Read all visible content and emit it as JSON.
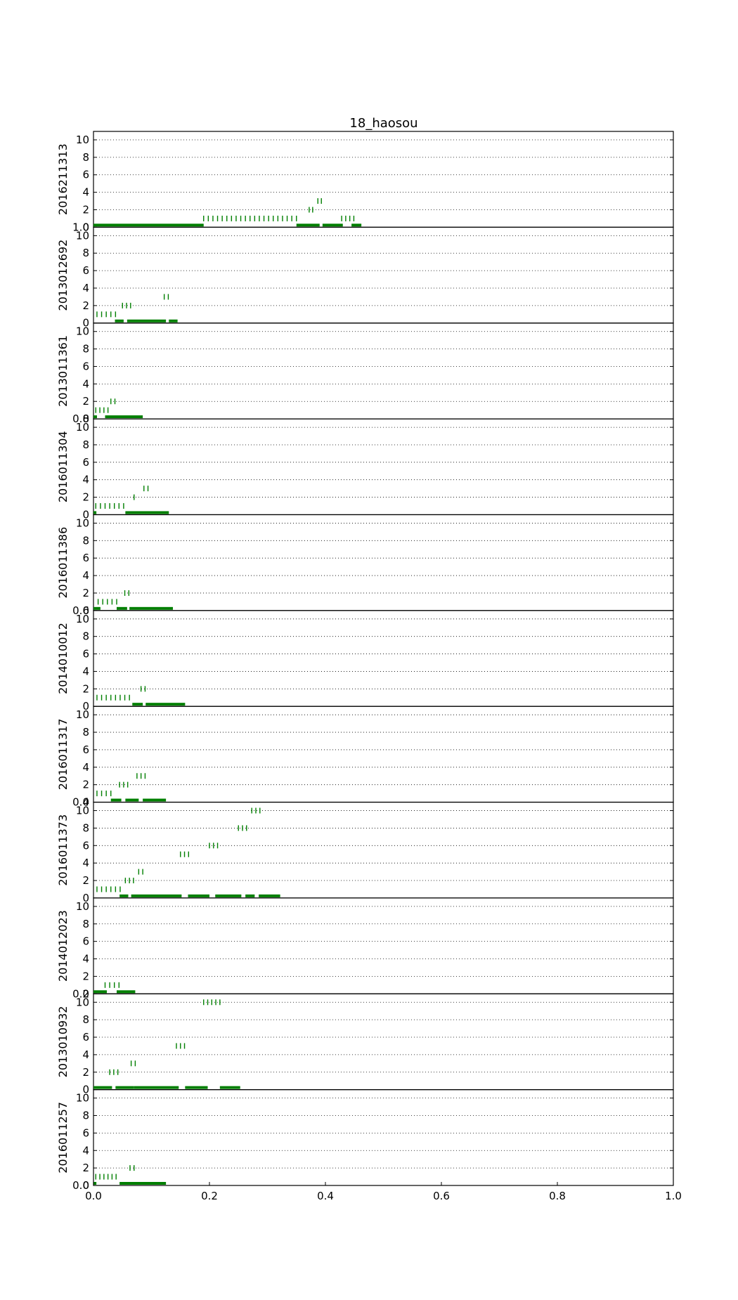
{
  "chart_data": {
    "type": "scatter",
    "title": "18_haosou",
    "xlim": [
      0.0,
      1.0
    ],
    "ylim": [
      0,
      10
    ],
    "xticks": [
      "0.0",
      "0.2",
      "0.4",
      "0.6",
      "0.8",
      "1.0"
    ],
    "yticks": [
      "0",
      "2",
      "4",
      "6",
      "8",
      "10"
    ],
    "grid": "horizontal dotted",
    "marker": "vertical tick",
    "color": "#007f00",
    "panels": [
      {
        "label": "2016211313",
        "bars": [
          [
            0.0,
            0.19
          ],
          [
            0.35,
            0.39
          ],
          [
            0.395,
            0.43
          ],
          [
            0.445,
            0.462
          ]
        ],
        "series": [
          {
            "y": 1,
            "x": [
              0.19,
              0.198,
              0.206,
              0.214,
              0.222,
              0.23,
              0.238,
              0.246,
              0.254,
              0.262,
              0.27,
              0.278,
              0.286,
              0.294,
              0.302,
              0.31,
              0.318,
              0.326,
              0.334,
              0.342,
              0.35
            ]
          },
          {
            "y": 2,
            "x": [
              0.372,
              0.378
            ]
          },
          {
            "y": 3,
            "x": [
              0.387,
              0.393
            ]
          },
          {
            "y": 1,
            "x": [
              0.428,
              0.435,
              0.442,
              0.449
            ]
          }
        ]
      },
      {
        "label": "2013012692",
        "bars": [
          [
            0.037,
            0.052
          ],
          [
            0.058,
            0.125
          ],
          [
            0.13,
            0.145
          ]
        ],
        "series": [
          {
            "y": 1,
            "x": [
              0.006,
              0.014,
              0.022,
              0.03,
              0.038
            ]
          },
          {
            "y": 2,
            "x": [
              0.05,
              0.057,
              0.064
            ]
          },
          {
            "y": 3,
            "x": [
              0.122,
              0.129
            ]
          }
        ]
      },
      {
        "label": "2013011361",
        "bars": [
          [
            0.0,
            0.006
          ],
          [
            0.02,
            0.085
          ]
        ],
        "series": [
          {
            "y": 1,
            "x": [
              0.004,
              0.011,
              0.018,
              0.025
            ]
          },
          {
            "y": 2,
            "x": [
              0.03,
              0.037
            ]
          }
        ]
      },
      {
        "label": "2016011304",
        "bars": [
          [
            0.0,
            0.005
          ],
          [
            0.055,
            0.13
          ]
        ],
        "series": [
          {
            "y": 1,
            "x": [
              0.004,
              0.012,
              0.02,
              0.028,
              0.036,
              0.044,
              0.052
            ]
          },
          {
            "y": 2,
            "x": [
              0.07
            ]
          },
          {
            "y": 3,
            "x": [
              0.087,
              0.094
            ]
          }
        ]
      },
      {
        "label": "2016011386",
        "bars": [
          [
            0.0,
            0.012
          ],
          [
            0.04,
            0.058
          ],
          [
            0.062,
            0.137
          ]
        ],
        "series": [
          {
            "y": 1,
            "x": [
              0.008,
              0.016,
              0.024,
              0.032,
              0.04
            ]
          },
          {
            "y": 2,
            "x": [
              0.054,
              0.061
            ]
          }
        ]
      },
      {
        "label": "2014010012",
        "bars": [
          [
            0.067,
            0.085
          ],
          [
            0.09,
            0.158
          ]
        ],
        "series": [
          {
            "y": 1,
            "x": [
              0.006,
              0.014,
              0.022,
              0.03,
              0.038,
              0.046,
              0.054,
              0.062
            ]
          },
          {
            "y": 2,
            "x": [
              0.082,
              0.089
            ]
          }
        ]
      },
      {
        "label": "2016011317",
        "bars": [
          [
            0.03,
            0.048
          ],
          [
            0.055,
            0.078
          ],
          [
            0.085,
            0.125
          ]
        ],
        "series": [
          {
            "y": 1,
            "x": [
              0.006,
              0.014,
              0.022,
              0.03
            ]
          },
          {
            "y": 2,
            "x": [
              0.045,
              0.052,
              0.059
            ]
          },
          {
            "y": 3,
            "x": [
              0.075,
              0.082,
              0.089
            ]
          }
        ]
      },
      {
        "label": "2016011373",
        "bars": [
          [
            0.045,
            0.06
          ],
          [
            0.065,
            0.152
          ],
          [
            0.163,
            0.2
          ],
          [
            0.21,
            0.255
          ],
          [
            0.262,
            0.278
          ],
          [
            0.285,
            0.322
          ]
        ],
        "series": [
          {
            "y": 1,
            "x": [
              0.006,
              0.014,
              0.022,
              0.03,
              0.038,
              0.046
            ]
          },
          {
            "y": 2,
            "x": [
              0.055,
              0.062,
              0.069
            ]
          },
          {
            "y": 3,
            "x": [
              0.078,
              0.085
            ]
          },
          {
            "y": 5,
            "x": [
              0.15,
              0.157,
              0.164
            ]
          },
          {
            "y": 6,
            "x": [
              0.2,
              0.207,
              0.214
            ]
          },
          {
            "y": 8,
            "x": [
              0.25,
              0.257,
              0.264
            ]
          },
          {
            "y": 10,
            "x": [
              0.273,
              0.28,
              0.287
            ]
          }
        ]
      },
      {
        "label": "2014012023",
        "bars": [
          [
            0.0,
            0.023
          ],
          [
            0.04,
            0.072
          ]
        ],
        "series": [
          {
            "y": 1,
            "x": [
              0.02,
              0.028,
              0.036,
              0.044
            ]
          }
        ]
      },
      {
        "label": "2013010932",
        "bars": [
          [
            0.0,
            0.032
          ],
          [
            0.038,
            0.07
          ],
          [
            0.07,
            0.147
          ],
          [
            0.158,
            0.197
          ],
          [
            0.218,
            0.253
          ]
        ],
        "series": [
          {
            "y": 2,
            "x": [
              0.028,
              0.035,
              0.042
            ]
          },
          {
            "y": 3,
            "x": [
              0.065,
              0.072
            ]
          },
          {
            "y": 5,
            "x": [
              0.143,
              0.15,
              0.157
            ]
          },
          {
            "y": 10,
            "x": [
              0.19,
              0.197,
              0.204,
              0.211,
              0.218
            ]
          }
        ]
      },
      {
        "label": "2016011257",
        "bars": [
          [
            0.0,
            0.005
          ],
          [
            0.045,
            0.125
          ]
        ],
        "series": [
          {
            "y": 1,
            "x": [
              0.004,
              0.011,
              0.018,
              0.025,
              0.032,
              0.039
            ]
          },
          {
            "y": 2,
            "x": [
              0.063,
              0.07
            ]
          }
        ]
      }
    ],
    "overlay_ticks": [
      {
        "text": "1.0",
        "after_panel": 0
      },
      {
        "text": "0.8",
        "after_panel": 2
      },
      {
        "text": "0.6",
        "after_panel": 4
      },
      {
        "text": "0.4",
        "after_panel": 6
      },
      {
        "text": "0.2",
        "after_panel": 8
      },
      {
        "text": "0.0",
        "after_panel": 10
      }
    ]
  }
}
